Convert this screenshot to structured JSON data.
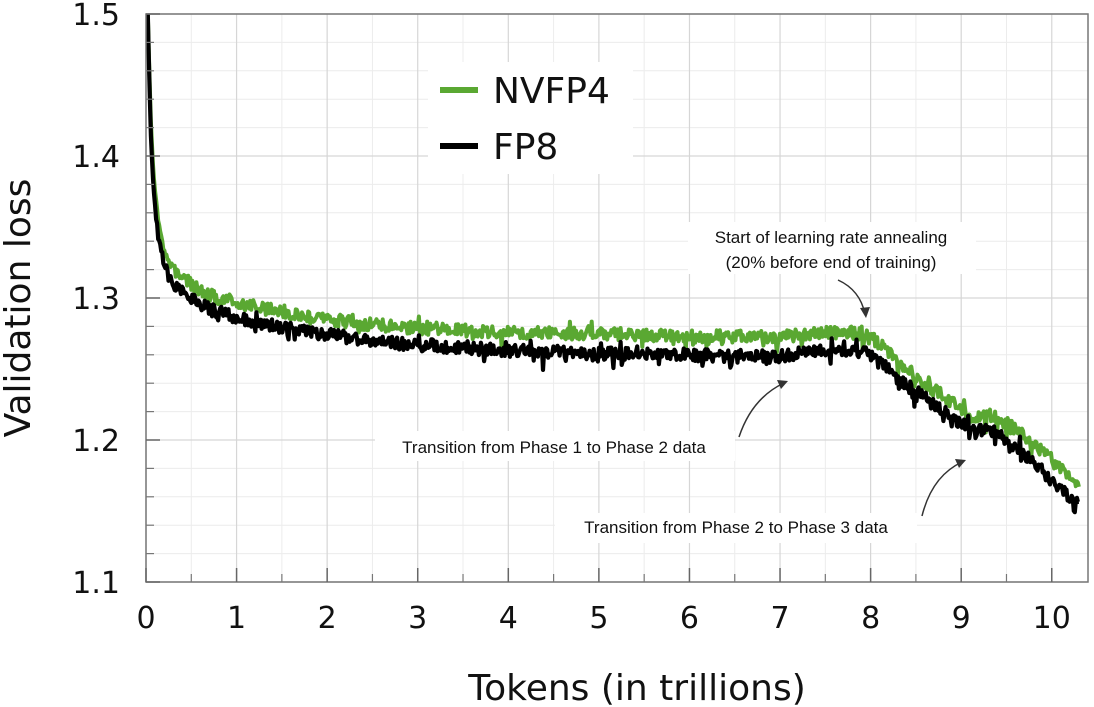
{
  "chart_data": {
    "type": "line",
    "xlabel": "Tokens (in trillions)",
    "ylabel": "Validation loss",
    "xlim": [
      0,
      10.4
    ],
    "ylim": [
      1.1,
      1.5
    ],
    "x_ticks": [
      "0",
      "1",
      "2",
      "3",
      "4",
      "5",
      "6",
      "7",
      "8",
      "9",
      "10"
    ],
    "y_ticks": [
      "1.1",
      "1.2",
      "1.3",
      "1.4",
      "1.5"
    ],
    "grid": true,
    "legend_position": "top-center",
    "series": [
      {
        "name": "NVFP4",
        "color": "#5aa832",
        "x": [
          0.02,
          0.05,
          0.08,
          0.12,
          0.16,
          0.2,
          0.25,
          0.3,
          0.4,
          0.5,
          0.6,
          0.7,
          0.8,
          1.0,
          1.2,
          1.5,
          2.0,
          2.5,
          3.0,
          3.5,
          4.0,
          4.5,
          5.0,
          5.5,
          6.0,
          6.5,
          7.0,
          7.3,
          7.6,
          7.9,
          8.05,
          8.15,
          8.3,
          8.5,
          8.7,
          8.9,
          9.05,
          9.15,
          9.3,
          9.5,
          9.7,
          9.9,
          10.1,
          10.3
        ],
        "values": [
          1.5,
          1.43,
          1.39,
          1.36,
          1.345,
          1.335,
          1.325,
          1.32,
          1.315,
          1.31,
          1.305,
          1.302,
          1.3,
          1.297,
          1.294,
          1.29,
          1.285,
          1.281,
          1.279,
          1.277,
          1.276,
          1.275,
          1.275,
          1.274,
          1.273,
          1.273,
          1.272,
          1.275,
          1.276,
          1.275,
          1.27,
          1.265,
          1.255,
          1.245,
          1.235,
          1.227,
          1.22,
          1.215,
          1.218,
          1.212,
          1.203,
          1.192,
          1.18,
          1.17
        ]
      },
      {
        "name": "FP8",
        "color": "#000000",
        "x": [
          0.02,
          0.05,
          0.08,
          0.12,
          0.16,
          0.2,
          0.25,
          0.3,
          0.4,
          0.5,
          0.6,
          0.7,
          0.8,
          1.0,
          1.2,
          1.5,
          2.0,
          2.5,
          3.0,
          3.5,
          4.0,
          4.5,
          5.0,
          5.5,
          6.0,
          6.5,
          7.0,
          7.3,
          7.6,
          7.9,
          8.05,
          8.15,
          8.3,
          8.5,
          8.7,
          8.9,
          9.05,
          9.15,
          9.3,
          9.5,
          9.7,
          9.9,
          10.1,
          10.3
        ],
        "values": [
          1.5,
          1.42,
          1.38,
          1.35,
          1.335,
          1.325,
          1.315,
          1.31,
          1.305,
          1.3,
          1.296,
          1.292,
          1.29,
          1.286,
          1.283,
          1.279,
          1.274,
          1.27,
          1.267,
          1.265,
          1.263,
          1.262,
          1.261,
          1.26,
          1.26,
          1.259,
          1.259,
          1.262,
          1.264,
          1.262,
          1.258,
          1.252,
          1.243,
          1.234,
          1.225,
          1.216,
          1.21,
          1.205,
          1.208,
          1.2,
          1.19,
          1.178,
          1.165,
          1.155
        ]
      }
    ],
    "annotations": [
      {
        "lines": [
          "Start of learning rate annealing",
          "(20% before end of training)"
        ],
        "x": 8.0,
        "y": 1.28
      },
      {
        "lines": [
          "Transition from Phase 1 to Phase 2 data"
        ],
        "x": 7.1,
        "y": 1.255
      },
      {
        "lines": [
          "Transition from Phase 2 to Phase 3 data"
        ],
        "x": 9.2,
        "y": 1.19
      }
    ]
  }
}
